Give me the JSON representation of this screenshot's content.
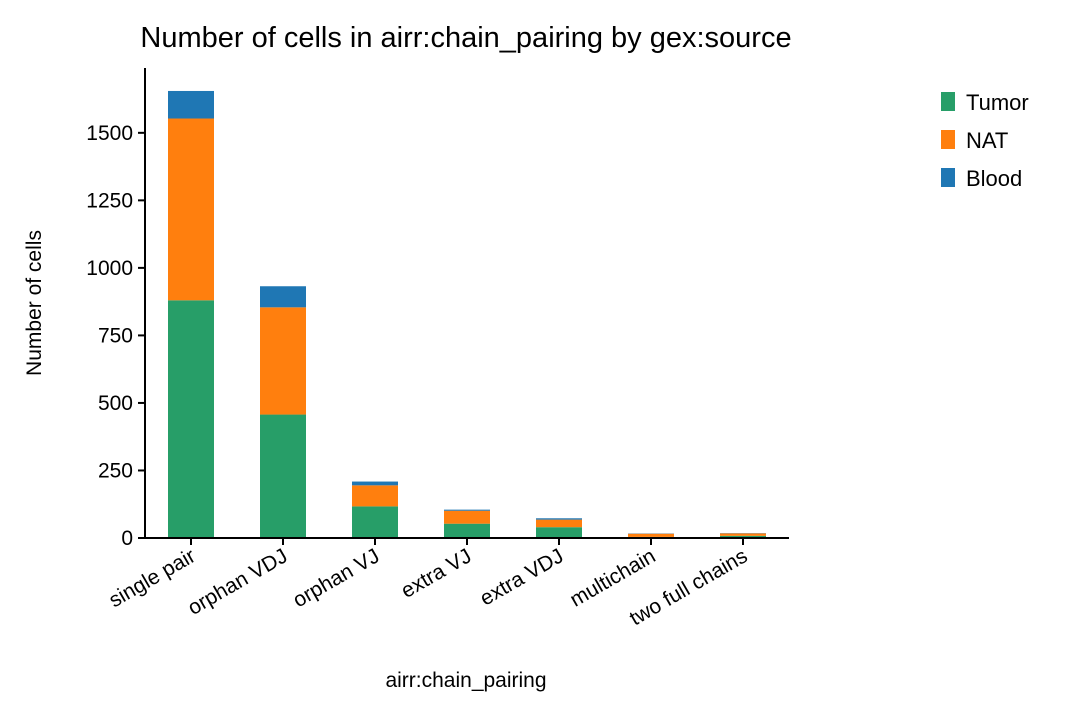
{
  "chart_data": {
    "type": "bar",
    "stacked": true,
    "title": "Number of cells in airr:chain_pairing by gex:source",
    "xlabel": "airr:chain_pairing",
    "ylabel": "Number of cells",
    "categories": [
      "single pair",
      "orphan VDJ",
      "orphan VJ",
      "extra VJ",
      "extra VDJ",
      "multichain",
      "two full chains"
    ],
    "series": [
      {
        "name": "Tumor",
        "color": "#279e68",
        "values": [
          880,
          457,
          117,
          53,
          40,
          4,
          8
        ]
      },
      {
        "name": "NAT",
        "color": "#ff7f0e",
        "values": [
          673,
          397,
          78,
          48,
          28,
          12,
          9
        ]
      },
      {
        "name": "Blood",
        "color": "#1f77b4",
        "values": [
          102,
          78,
          14,
          4,
          5,
          1,
          1
        ]
      }
    ],
    "ylim": [
      0,
      1740
    ],
    "yticks": [
      0,
      250,
      500,
      750,
      1000,
      1250,
      1500
    ],
    "grid": false,
    "legend": "outside-right"
  }
}
